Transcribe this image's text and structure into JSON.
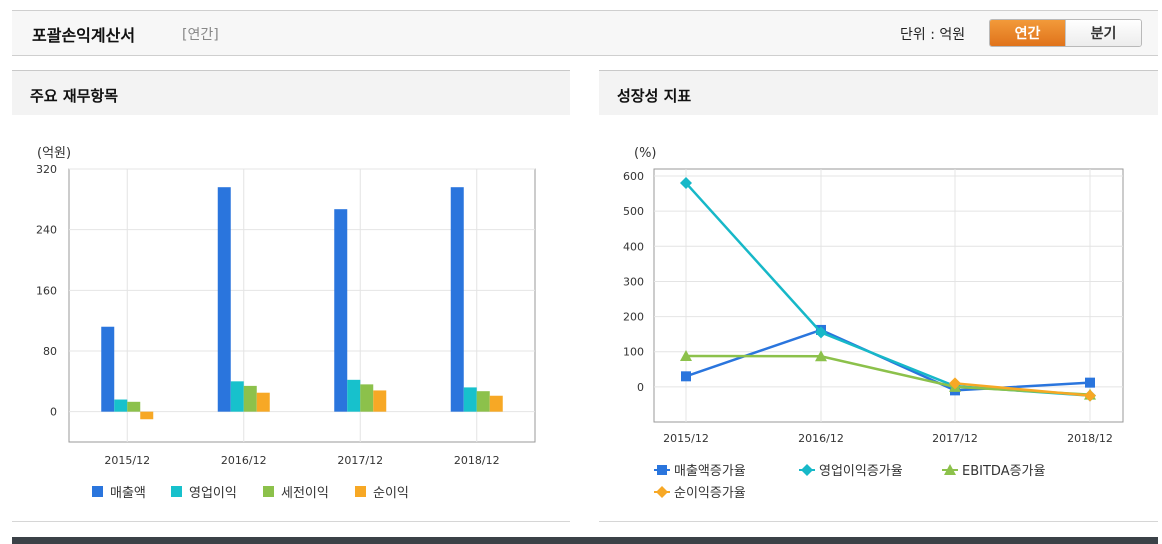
{
  "header": {
    "title": "포괄손익계산서",
    "period_tag": "[연간]",
    "unit": "단위 : 억원",
    "toggle": {
      "annual": "연간",
      "quarter": "분기"
    },
    "colors": {
      "active": "#e8821f"
    }
  },
  "left_panel": {
    "title": "주요 재무항목"
  },
  "right_panel": {
    "title": "성장성 지표"
  },
  "chart_data": [
    {
      "type": "bar",
      "title": "",
      "ylabel": "(억원)",
      "ylim": [
        -40,
        320
      ],
      "yticks": [
        0,
        80,
        160,
        240,
        320
      ],
      "categories": [
        "2015/12",
        "2016/12",
        "2017/12",
        "2018/12"
      ],
      "series": [
        {
          "name": "매출액",
          "color": "#2a75dd",
          "values": [
            112,
            296,
            267,
            296
          ]
        },
        {
          "name": "영업이익",
          "color": "#17c1cc",
          "values": [
            16,
            40,
            42,
            32
          ]
        },
        {
          "name": "세전이익",
          "color": "#8cc14b",
          "values": [
            13,
            34,
            36,
            27
          ]
        },
        {
          "name": "순이익",
          "color": "#f7a825",
          "values": [
            -10,
            25,
            28,
            21
          ]
        }
      ],
      "legend_position": "bottom",
      "grid": true
    },
    {
      "type": "line",
      "title": "",
      "ylabel": "(%)",
      "ylim": [
        -100,
        620
      ],
      "yticks": [
        0,
        100,
        200,
        300,
        400,
        500,
        600
      ],
      "categories": [
        "2015/12",
        "2016/12",
        "2017/12",
        "2018/12"
      ],
      "series": [
        {
          "name": "매출액증가율",
          "color": "#2a75dd",
          "marker": "square",
          "values": [
            30,
            162,
            -10,
            12
          ]
        },
        {
          "name": "영업이익증가율",
          "color": "#17b8c8",
          "marker": "diamond",
          "values": [
            580,
            155,
            2,
            -25
          ]
        },
        {
          "name": "EBITDA증가율",
          "color": "#8cc14b",
          "marker": "triangle",
          "values": [
            88,
            87,
            0,
            -22
          ]
        },
        {
          "name": "순이익증가율",
          "color": "#f7a825",
          "marker": "diamond",
          "values": [
            null,
            null,
            10,
            -25
          ]
        }
      ],
      "legend_position": "bottom",
      "grid": true
    }
  ]
}
